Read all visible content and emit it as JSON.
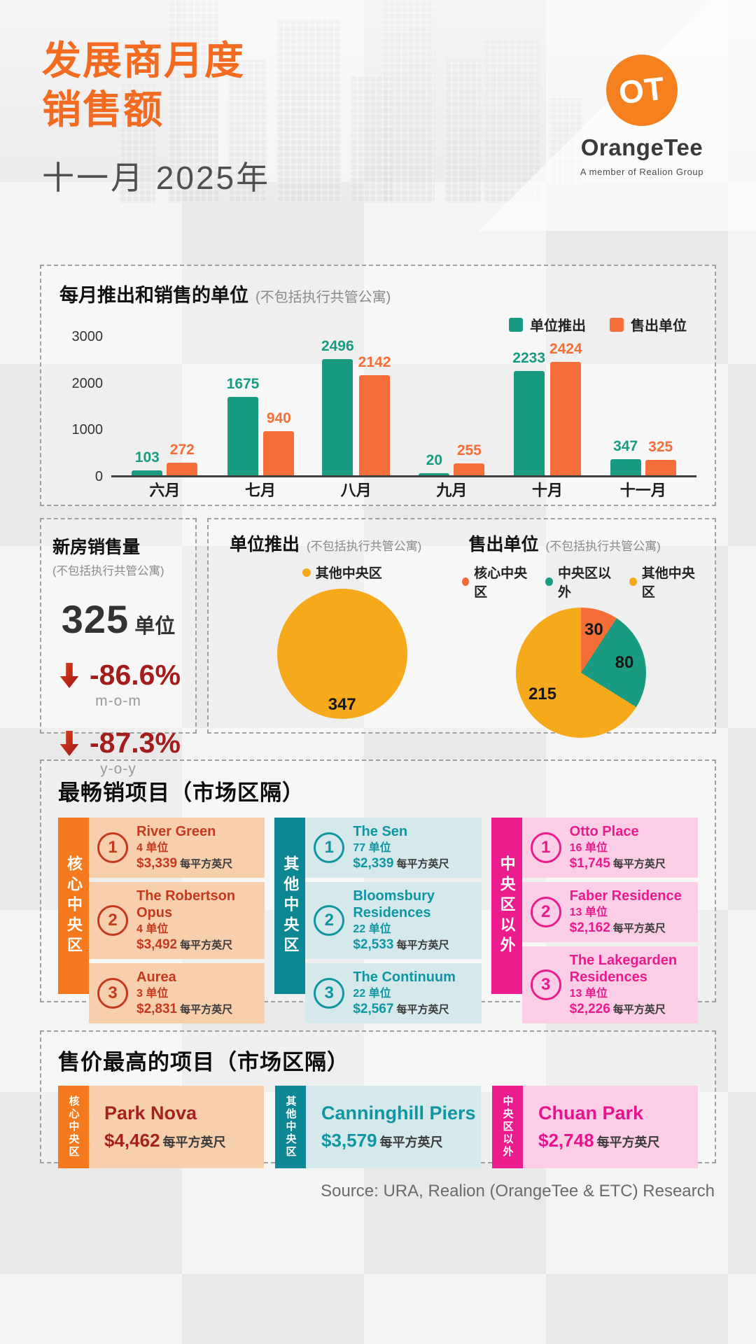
{
  "header": {
    "title_line1": "发展商月度",
    "title_line2": "销售额",
    "subtitle": "十一月 2025年",
    "logo": {
      "mark": "OT",
      "brand": "OrangeTee",
      "tagline": "A member of Realion Group",
      "color": "#f4801f"
    }
  },
  "bar_section": {
    "title": "每月推出和销售的单位",
    "note": "(不包括执行共管公寓)"
  },
  "chart_data": [
    {
      "type": "bar",
      "title": "每月推出和销售的单位 (不包括执行共管公寓)",
      "categories": [
        "六月",
        "七月",
        "八月",
        "九月",
        "十月",
        "十一月"
      ],
      "series": [
        {
          "name": "单位推出",
          "color": "#189b80",
          "values": [
            103,
            1675,
            2496,
            20,
            2233,
            347
          ]
        },
        {
          "name": "售出单位",
          "color": "#f56e38",
          "values": [
            272,
            940,
            2142,
            255,
            2424,
            325
          ]
        }
      ],
      "xlabel": "",
      "ylabel": "",
      "ylim": [
        0,
        3000
      ],
      "yticks": [
        0,
        1000,
        2000,
        3000
      ],
      "grid": false,
      "legend_position": "top-right"
    },
    {
      "type": "pie",
      "title": "单位推出 (不包括执行共管公寓)",
      "labels": [
        "其他中央区"
      ],
      "values": [
        347
      ],
      "colors": [
        "#f7a91c"
      ],
      "label_radius": 0.78
    },
    {
      "type": "pie",
      "title": "售出单位 (不包括执行共管公寓)",
      "labels": [
        "核心中央区",
        "中央区以外",
        "其他中央区"
      ],
      "values": [
        30,
        80,
        215
      ],
      "colors": [
        "#f56e38",
        "#189b80",
        "#f7a91c"
      ],
      "label_radius": 0.68
    }
  ],
  "stats_panel": {
    "title": "新房销售量",
    "note": "(不包括执行共管公寓)",
    "value": "325",
    "unit": "单位",
    "mom": {
      "value": "-86.6%",
      "label": "m-o-m"
    },
    "yoy": {
      "value": "-87.3%",
      "label": "y-o-y"
    }
  },
  "pie_section": {
    "left_title": "单位推出",
    "left_note": "(不包括执行共管公寓)",
    "right_title": "售出单位",
    "right_note": "(不包括执行共管公寓)"
  },
  "top_projects": {
    "title": "最畅销项目（市场区隔）",
    "psf_label": "每平方英尺",
    "columns": [
      {
        "segment": "核心中央区",
        "accent": "#f5791d",
        "row_bg": "#f8cfad",
        "text": "#c33a1d",
        "items": [
          {
            "rank": "1",
            "name": "River Green",
            "units": "4 单位",
            "price": "$3,339"
          },
          {
            "rank": "2",
            "name": "The Robertson Opus",
            "units": "4 单位",
            "price": "$3,492"
          },
          {
            "rank": "3",
            "name": "Aurea",
            "units": "3 单位",
            "price": "$2,831"
          }
        ]
      },
      {
        "segment": "其他中央区",
        "accent": "#0d8794",
        "row_bg": "#d5e9ec",
        "text": "#1095a3",
        "items": [
          {
            "rank": "1",
            "name": "The Sen",
            "units": "77 单位",
            "price": "$2,339"
          },
          {
            "rank": "2",
            "name": "Bloomsbury Residences",
            "units": "22 单位",
            "price": "$2,533"
          },
          {
            "rank": "3",
            "name": "The Continuum",
            "units": "22 单位",
            "price": "$2,567"
          }
        ]
      },
      {
        "segment": "中央区以外",
        "accent": "#ec1c8e",
        "row_bg": "#fbcee6",
        "text": "#ea1c8c",
        "items": [
          {
            "rank": "1",
            "name": "Otto Place",
            "units": "16 单位",
            "price": "$1,745"
          },
          {
            "rank": "2",
            "name": "Faber Residence",
            "units": "13 单位",
            "price": "$2,162"
          },
          {
            "rank": "3",
            "name": "The Lakegarden Residences",
            "units": "13 单位",
            "price": "$2,226"
          }
        ]
      }
    ]
  },
  "top_price": {
    "title": "售价最高的项目（市场区隔）",
    "psf_label": "每平方英尺",
    "cards": [
      {
        "segment": "核心中央区",
        "accent": "#f5791d",
        "bg": "#f8cfad",
        "text": "#a3231a",
        "name": "Park Nova",
        "price": "$4,462"
      },
      {
        "segment": "其他中央区",
        "accent": "#0d8794",
        "bg": "#d5e9ec",
        "text": "#1095a3",
        "name": "Canninghill Piers",
        "price": "$3,579"
      },
      {
        "segment": "中央区以外",
        "accent": "#ec1c8e",
        "bg": "#fbcee6",
        "text": "#e8148b",
        "name": "Chuan Park",
        "price": "$2,748"
      }
    ]
  },
  "footer": {
    "source": "Source: URA, Realion (OrangeTee & ETC) Research"
  }
}
